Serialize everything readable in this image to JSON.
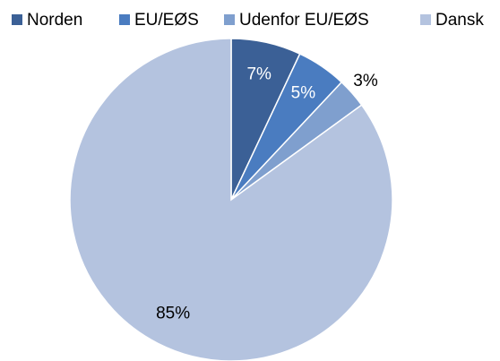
{
  "chart_data": {
    "type": "pie",
    "categories": [
      "Norden",
      "EU/EØS",
      "Udenfor EU/EØS",
      "Dansk"
    ],
    "values": [
      7,
      5,
      3,
      85
    ],
    "value_labels": [
      "7%",
      "5%",
      "3%",
      "85%"
    ],
    "colors": [
      "#3b6096",
      "#4a7cc0",
      "#7f9fce",
      "#b4c3df"
    ],
    "legend": "top"
  }
}
